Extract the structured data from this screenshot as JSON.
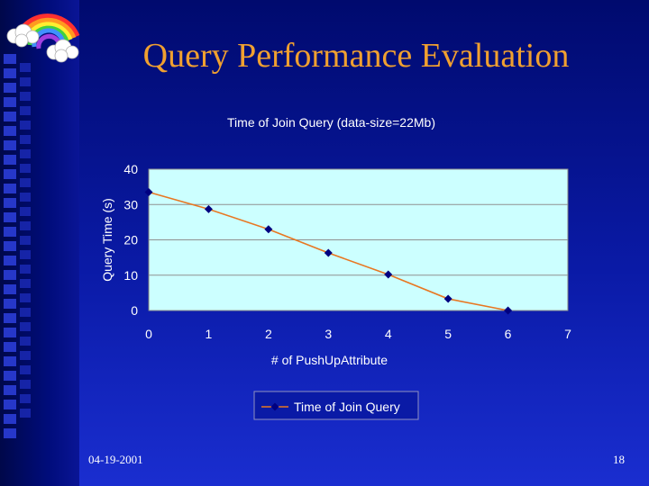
{
  "slide": {
    "title": "Query Performance Evaluation",
    "date": "04-19-2001",
    "page_number": "18"
  },
  "colors": {
    "plot_background": "#ccffff",
    "line": "#e87722",
    "marker": "#000080",
    "title_text": "#f0a030"
  },
  "chart_data": {
    "type": "line",
    "title": "Time of Join Query (data-size=22Mb)",
    "xlabel": "# of PushUpAttribute",
    "ylabel": "Query Time (s)",
    "xlim": [
      0,
      7
    ],
    "ylim": [
      0,
      40
    ],
    "x_ticks": [
      "0",
      "1",
      "2",
      "3",
      "4",
      "5",
      "6",
      "7"
    ],
    "y_ticks": [
      "0",
      "10",
      "20",
      "30",
      "40"
    ],
    "grid": true,
    "legend_position": "bottom",
    "series": [
      {
        "name": "Time of Join Query",
        "x": [
          0,
          1,
          2,
          3,
          4,
          5,
          6
        ],
        "y": [
          33.5,
          28.7,
          23,
          16.3,
          10.2,
          3.3,
          0
        ]
      }
    ]
  }
}
